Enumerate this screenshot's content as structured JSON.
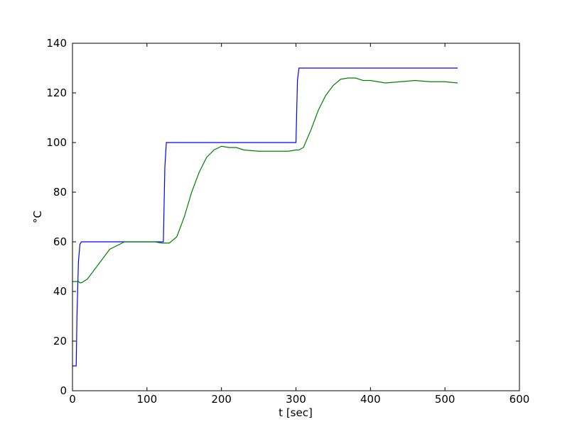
{
  "chart_data": {
    "type": "line",
    "x_label": "t [sec]",
    "y_label": "°C",
    "x": [
      0,
      5,
      6,
      8,
      10,
      12,
      20,
      30,
      40,
      50,
      60,
      70,
      90,
      100,
      110,
      120,
      122,
      124,
      126,
      130,
      140,
      150,
      160,
      170,
      180,
      190,
      200,
      210,
      220,
      230,
      250,
      270,
      290,
      300,
      302,
      304,
      310,
      320,
      330,
      340,
      350,
      360,
      370,
      380,
      390,
      400,
      420,
      440,
      460,
      480,
      500,
      517
    ],
    "series": [
      {
        "color": "#0000ff",
        "values": [
          10,
          10,
          30,
          52,
          59,
          60,
          60,
          60,
          60,
          60,
          60,
          60,
          60,
          60,
          60,
          60,
          60,
          90,
          100,
          100,
          100,
          100,
          100,
          100,
          100,
          100,
          100,
          100,
          100,
          100,
          100,
          100,
          100,
          100,
          125,
          130,
          130,
          130,
          130,
          130,
          130,
          130,
          130,
          130,
          130,
          130,
          130,
          130,
          130,
          130,
          130,
          130
        ]
      },
      {
        "color": "#008000",
        "values": [
          44,
          44,
          44,
          44,
          43.5,
          43.5,
          45,
          49,
          53,
          57,
          58.5,
          60,
          60,
          60,
          60,
          59.5,
          59.5,
          59.5,
          59.5,
          59.5,
          62,
          70,
          80,
          88,
          94,
          97,
          98.5,
          98,
          98,
          97,
          96.5,
          96.5,
          96.5,
          97,
          97,
          97,
          98,
          105,
          113,
          119,
          123,
          125.5,
          126,
          126,
          125,
          125,
          124,
          124.5,
          125,
          124.5,
          124.5,
          124
        ]
      }
    ],
    "xlim": [
      0,
      600
    ],
    "xticks": [
      0,
      100,
      200,
      300,
      400,
      500,
      600
    ],
    "ylim": [
      0,
      140
    ],
    "yticks": [
      0,
      20,
      40,
      60,
      80,
      100,
      120,
      140
    ],
    "grid": false
  }
}
